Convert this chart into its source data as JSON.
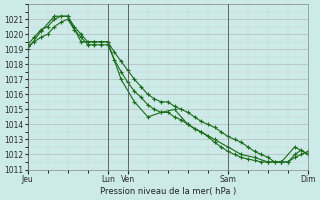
{
  "background_color": "#cceae7",
  "grid_color_major": "#b0b0b0",
  "grid_color_minor": "#d0d0d0",
  "line_color": "#1a6b1a",
  "xlabel": "Pression niveau de la mer( hPa )",
  "ylim": [
    1011,
    1022
  ],
  "xlim": [
    0,
    84
  ],
  "yticks": [
    1011,
    1012,
    1013,
    1014,
    1015,
    1016,
    1017,
    1018,
    1019,
    1020,
    1021
  ],
  "xtick_positions": [
    0,
    24,
    30,
    60,
    84
  ],
  "xtick_labels": [
    "Jeu",
    "Lun",
    "Ven",
    "Sam",
    "Dim"
  ],
  "vline_positions": [
    0,
    24,
    30,
    60,
    84
  ],
  "series1_x": [
    0,
    2,
    4,
    6,
    8,
    10,
    12,
    14,
    16,
    18,
    20,
    22,
    24,
    26,
    28,
    30,
    32,
    34,
    36,
    38,
    40,
    42,
    44,
    46,
    48,
    50,
    52,
    54,
    56,
    58,
    60,
    62,
    64,
    66,
    68,
    70,
    72,
    74,
    76,
    78,
    80,
    82,
    84
  ],
  "series1_y": [
    1019.3,
    1019.8,
    1020.3,
    1020.5,
    1021.0,
    1021.2,
    1021.2,
    1020.5,
    1020.0,
    1019.5,
    1019.5,
    1019.5,
    1019.5,
    1018.8,
    1018.2,
    1017.6,
    1017.0,
    1016.5,
    1016.0,
    1015.7,
    1015.5,
    1015.5,
    1015.2,
    1015.0,
    1014.8,
    1014.5,
    1014.2,
    1014.0,
    1013.8,
    1013.5,
    1013.2,
    1013.0,
    1012.8,
    1012.5,
    1012.2,
    1012.0,
    1011.8,
    1011.5,
    1011.5,
    1011.5,
    1011.8,
    1012.0,
    1012.2
  ],
  "series2_x": [
    0,
    2,
    4,
    6,
    8,
    10,
    12,
    14,
    16,
    18,
    20,
    22,
    24,
    26,
    28,
    30,
    32,
    34,
    36,
    38,
    40,
    42,
    44,
    46,
    48,
    50,
    52,
    54,
    56,
    58,
    60,
    62,
    64,
    66,
    68,
    70,
    72,
    74,
    76,
    78,
    80,
    82,
    84
  ],
  "series2_y": [
    1019.2,
    1019.5,
    1019.8,
    1020.0,
    1020.5,
    1020.8,
    1021.0,
    1020.3,
    1019.8,
    1019.3,
    1019.3,
    1019.3,
    1019.3,
    1018.3,
    1017.5,
    1016.8,
    1016.2,
    1015.8,
    1015.3,
    1015.0,
    1014.8,
    1014.8,
    1014.5,
    1014.3,
    1014.0,
    1013.7,
    1013.5,
    1013.2,
    1012.8,
    1012.5,
    1012.2,
    1012.0,
    1011.8,
    1011.7,
    1011.6,
    1011.5,
    1011.5,
    1011.5,
    1011.5,
    1011.5,
    1012.0,
    1012.3,
    1012.0
  ],
  "series3_x": [
    0,
    4,
    8,
    12,
    16,
    20,
    24,
    28,
    32,
    36,
    40,
    44,
    48,
    52,
    56,
    60,
    64,
    68,
    72,
    76,
    80,
    84
  ],
  "series3_y": [
    1019.0,
    1020.2,
    1021.2,
    1021.2,
    1019.5,
    1019.5,
    1019.5,
    1017.0,
    1015.5,
    1014.5,
    1014.8,
    1015.0,
    1014.0,
    1013.5,
    1013.0,
    1012.5,
    1012.0,
    1011.8,
    1011.5,
    1011.5,
    1012.5,
    1012.0
  ]
}
